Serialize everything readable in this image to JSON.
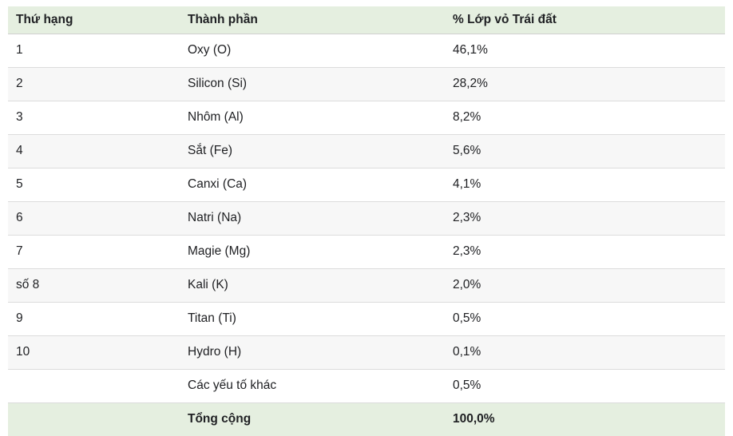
{
  "table": {
    "title_semantic": "earth-crust-composition-table",
    "columns": [
      {
        "key": "rank",
        "label": "Thứ hạng"
      },
      {
        "key": "component",
        "label": "Thành phần"
      },
      {
        "key": "percent",
        "label": "% Lớp vỏ Trái đất"
      }
    ],
    "rows": [
      {
        "rank": "1",
        "component": "Oxy (O)",
        "percent": "46,1%"
      },
      {
        "rank": "2",
        "component": "Silicon (Si)",
        "percent": "28,2%"
      },
      {
        "rank": "3",
        "component": "Nhôm (Al)",
        "percent": "8,2%"
      },
      {
        "rank": "4",
        "component": "Sắt (Fe)",
        "percent": "5,6%"
      },
      {
        "rank": "5",
        "component": "Canxi (Ca)",
        "percent": "4,1%"
      },
      {
        "rank": "6",
        "component": "Natri (Na)",
        "percent": "2,3%"
      },
      {
        "rank": "7",
        "component": "Magie (Mg)",
        "percent": "2,3%"
      },
      {
        "rank": "số 8",
        "component": "Kali (K)",
        "percent": "2,0%"
      },
      {
        "rank": "9",
        "component": "Titan (Ti)",
        "percent": "0,5%"
      },
      {
        "rank": "10",
        "component": "Hydro (H)",
        "percent": "0,1%"
      },
      {
        "rank": "",
        "component": "Các yếu tố khác",
        "percent": "0,5%"
      }
    ],
    "footer": {
      "rank": "",
      "component": "Tổng cộng",
      "percent": "100,0%"
    }
  },
  "colors": {
    "header_bg": "#e5efe0",
    "stripe_bg": "#f7f7f7",
    "divider": "#dcdcdc",
    "text": "#202124"
  },
  "chart_data": {
    "type": "table",
    "title": "% Lớp vỏ Trái đất",
    "categories": [
      "Oxy (O)",
      "Silicon (Si)",
      "Nhôm (Al)",
      "Sắt (Fe)",
      "Canxi (Ca)",
      "Natri (Na)",
      "Magie (Mg)",
      "Kali (K)",
      "Titan (Ti)",
      "Hydro (H)",
      "Các yếu tố khác"
    ],
    "values": [
      46.1,
      28.2,
      8.2,
      5.6,
      4.1,
      2.3,
      2.3,
      2.0,
      0.5,
      0.1,
      0.5
    ],
    "total": 100.0
  }
}
